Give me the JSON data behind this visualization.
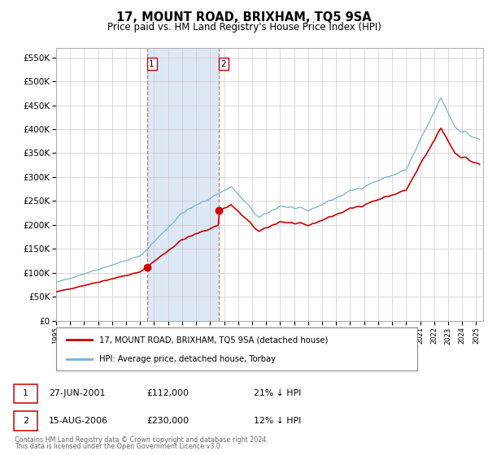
{
  "title": "17, MOUNT ROAD, BRIXHAM, TQ5 9SA",
  "subtitle": "Price paid vs. HM Land Registry's House Price Index (HPI)",
  "ylim": [
    0,
    570000
  ],
  "yticks": [
    0,
    50000,
    100000,
    150000,
    200000,
    250000,
    300000,
    350000,
    400000,
    450000,
    500000,
    550000
  ],
  "ytick_labels": [
    "£0",
    "£50K",
    "£100K",
    "£150K",
    "£200K",
    "£250K",
    "£300K",
    "£350K",
    "£400K",
    "£450K",
    "£500K",
    "£550K"
  ],
  "sale1_year": 2001.49,
  "sale1_price": 112000,
  "sale2_year": 2006.62,
  "sale2_price": 230000,
  "xmin": 1995.0,
  "xmax": 2025.5,
  "legend_line1": "17, MOUNT ROAD, BRIXHAM, TQ5 9SA (detached house)",
  "legend_line2": "HPI: Average price, detached house, Torbay",
  "ann1_date": "27-JUN-2001",
  "ann1_price": "£112,000",
  "ann1_hpi": "21% ↓ HPI",
  "ann2_date": "15-AUG-2006",
  "ann2_price": "£230,000",
  "ann2_hpi": "12% ↓ HPI",
  "footnote1": "Contains HM Land Registry data © Crown copyright and database right 2024.",
  "footnote2": "This data is licensed under the Open Government Licence v3.0.",
  "color_red": "#cc0000",
  "color_blue": "#7ab0d4",
  "color_vline": "#e07070",
  "color_span": "#dde8f5",
  "color_grid": "#cccccc",
  "color_footnote": "#666666"
}
